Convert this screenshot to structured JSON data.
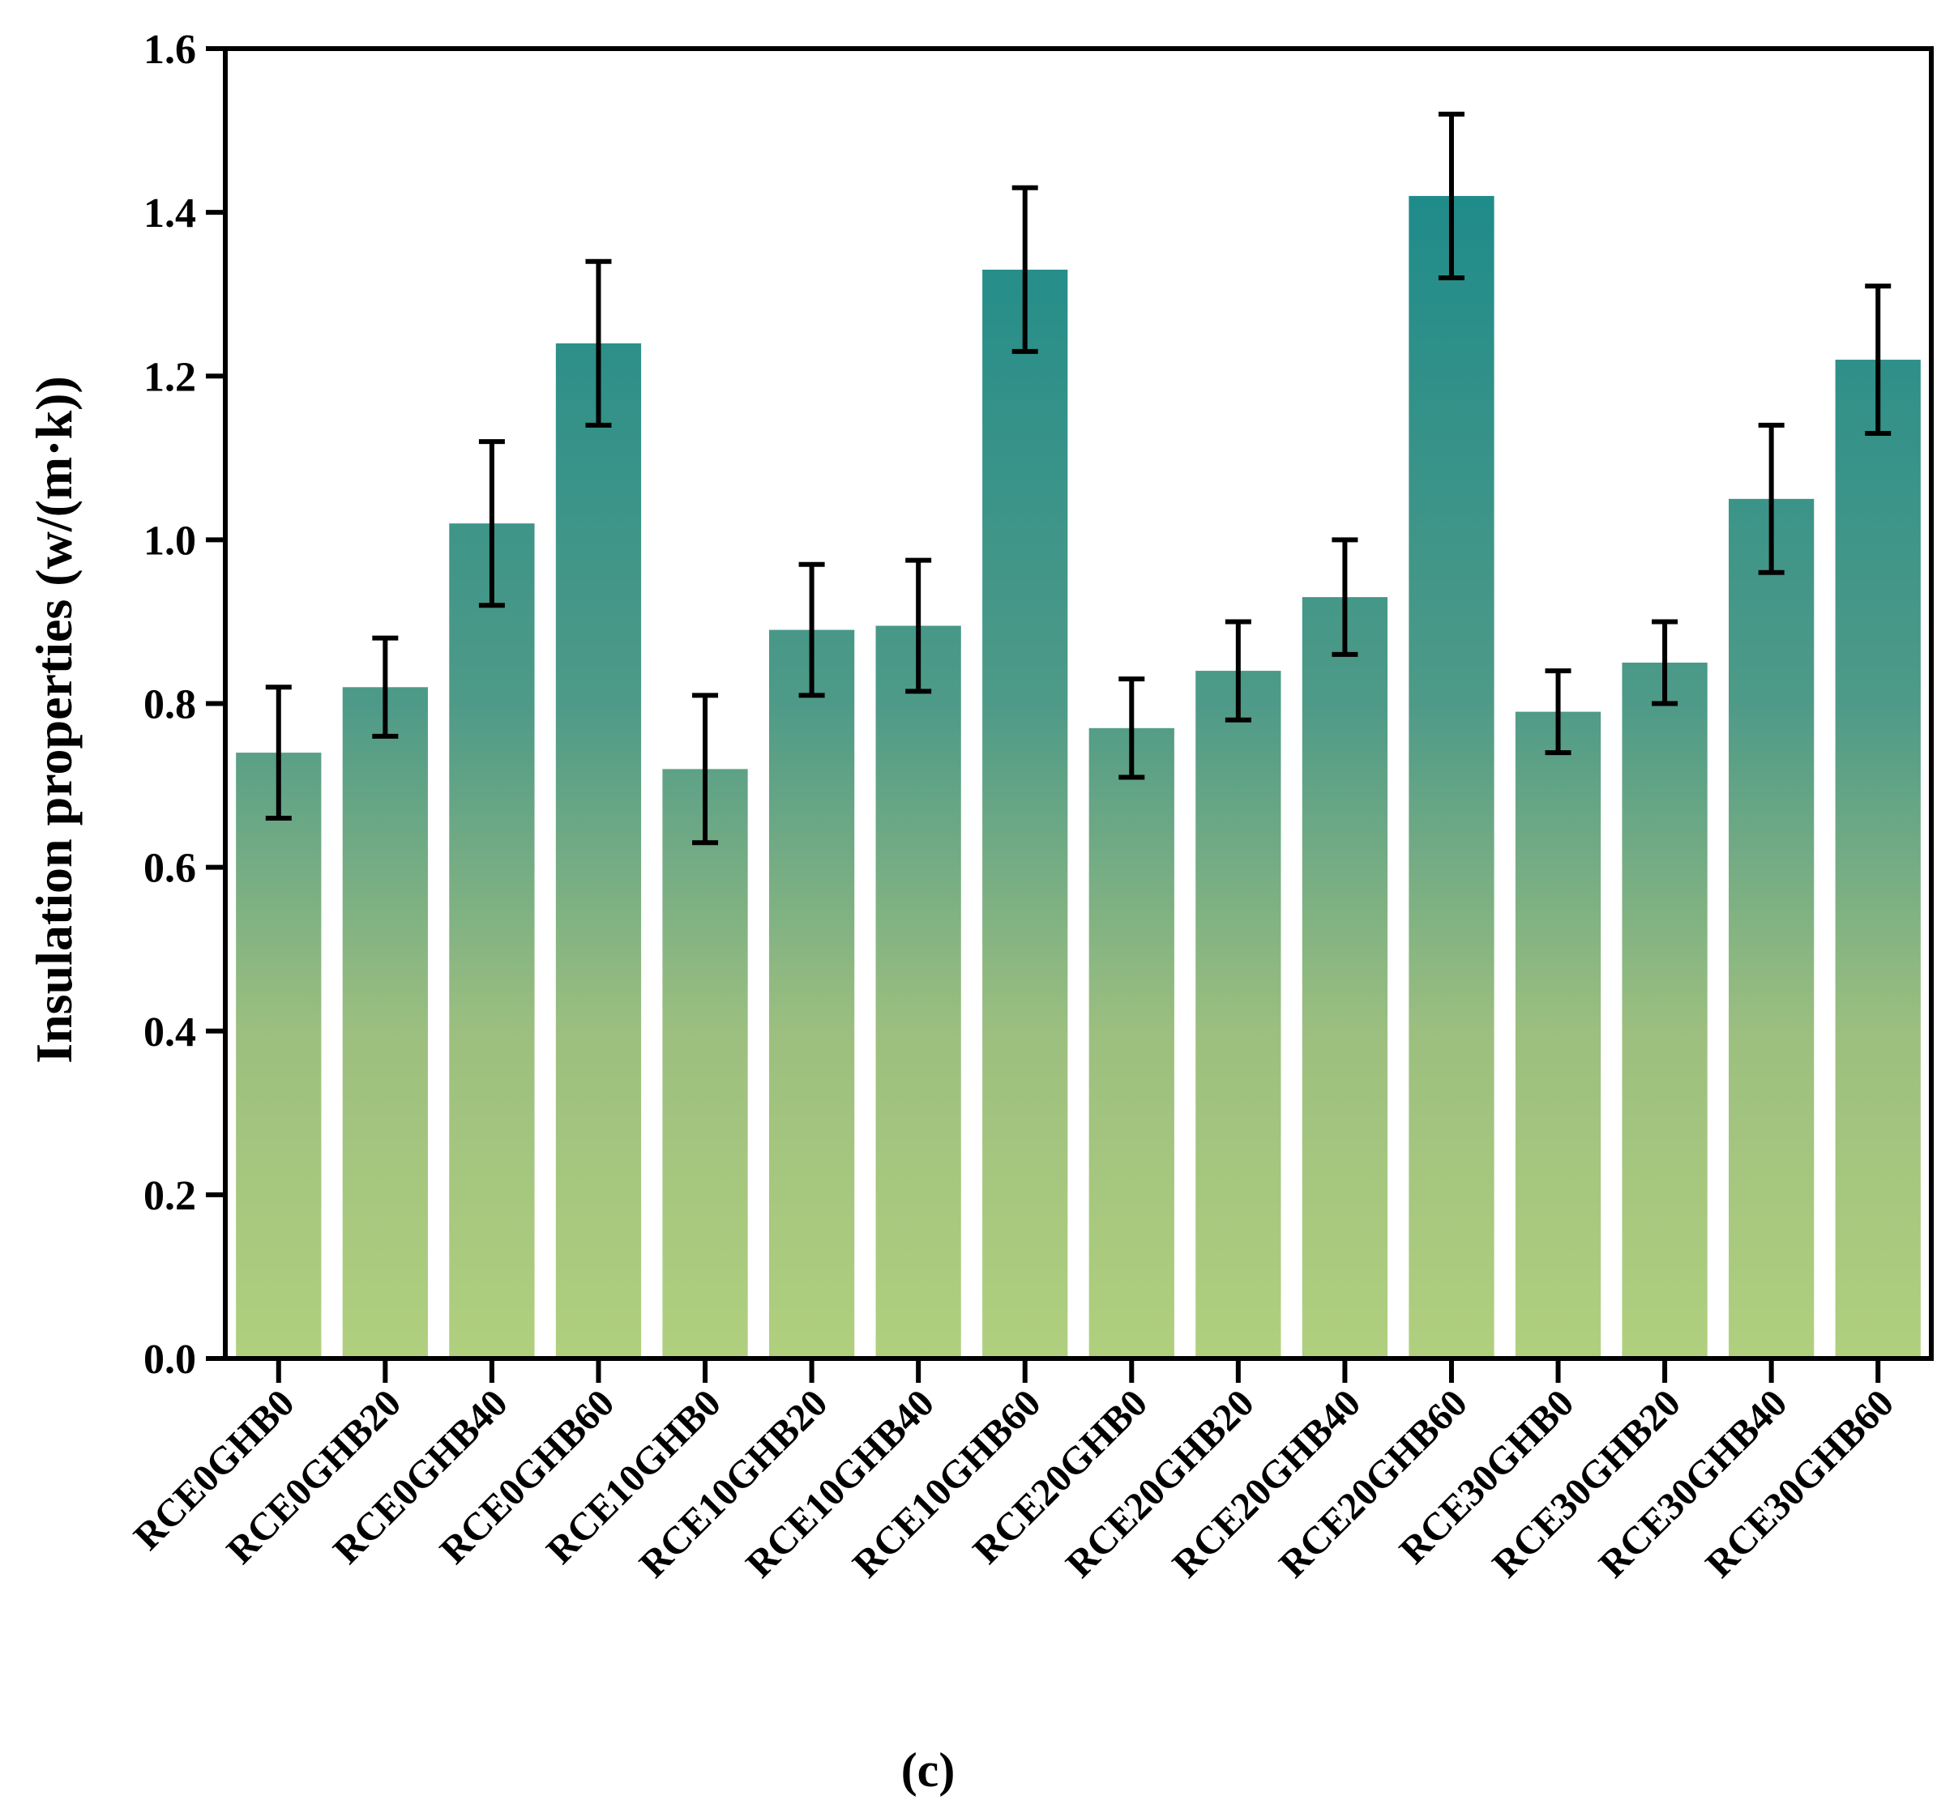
{
  "chart_data": {
    "type": "bar",
    "title": "",
    "xlabel": "",
    "ylabel": "Insulation properties (w/(m·k))",
    "ylim": [
      0,
      1.6
    ],
    "yticks": [
      "0.0",
      "0.2",
      "0.4",
      "0.6",
      "0.8",
      "1.0",
      "1.2",
      "1.4",
      "1.6"
    ],
    "grid": false,
    "legend": "none",
    "categories": [
      "RCE0GHB0",
      "RCE0GHB20",
      "RCE0GHB40",
      "RCE0GHB60",
      "RCE10GHB0",
      "RCE10GHB20",
      "RCE10GHB40",
      "RCE10GHB60",
      "RCE20GHB0",
      "RCE20GHB20",
      "RCE20GHB40",
      "RCE20GHB60",
      "RCE30GHB0",
      "RCE30GHB20",
      "RCE30GHB40",
      "RCE30GHB60"
    ],
    "values": [
      0.74,
      0.82,
      1.02,
      1.24,
      0.72,
      0.89,
      0.895,
      1.33,
      0.77,
      0.84,
      0.93,
      1.42,
      0.79,
      0.85,
      1.05,
      1.22
    ],
    "errors": [
      0.08,
      0.06,
      0.1,
      0.1,
      0.09,
      0.08,
      0.08,
      0.1,
      0.06,
      0.06,
      0.07,
      0.1,
      0.05,
      0.05,
      0.09,
      0.09
    ],
    "colors": {
      "top": "#12878a",
      "bottom": "#b0d07e",
      "error_bar": "#000000",
      "axis": "#000000"
    }
  },
  "caption": "(c)"
}
